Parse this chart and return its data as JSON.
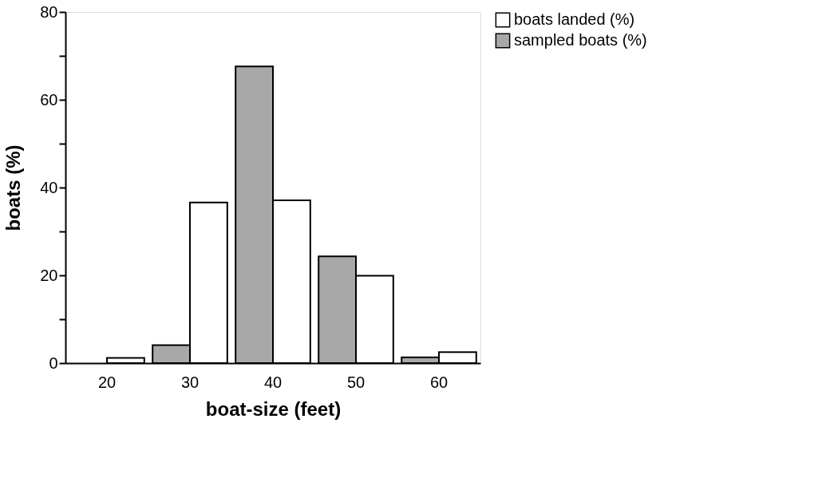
{
  "chart_data": {
    "type": "bar",
    "xlabel": "boat-size    (feet)",
    "ylabel": "boats (%)",
    "categories": [
      "20",
      "30",
      "40",
      "50",
      "60"
    ],
    "series": [
      {
        "name": "boats landed (%)",
        "color": "#ffffff",
        "values": [
          1.2,
          36.6,
          37.1,
          19.9,
          2.5
        ]
      },
      {
        "name": "sampled boats (%)",
        "color": "#a8a8a8",
        "values": [
          null,
          4.1,
          67.6,
          24.3,
          1.3
        ]
      }
    ],
    "ylim": [
      0,
      80
    ],
    "yticks": [
      0,
      {
        "value": 10,
        "label": null
      },
      20,
      {
        "value": 30,
        "label": null
      },
      40,
      {
        "value": 50,
        "label": null
      },
      60,
      {
        "value": 70,
        "label": null
      },
      80
    ],
    "grid": false,
    "legend": "top right"
  }
}
